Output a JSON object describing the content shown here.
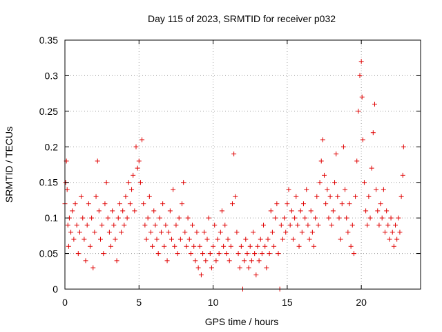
{
  "chart_data": {
    "type": "scatter",
    "title": "Day 115 of 2023, SRMTID for receiver p032",
    "xlabel": "GPS time / hours",
    "ylabel": "SRMTID / TECUs",
    "xlim": [
      0,
      24
    ],
    "ylim": [
      0,
      0.35
    ],
    "xticks": [
      0,
      5,
      10,
      15,
      20
    ],
    "xtick_labels": [
      "0",
      "5",
      "10",
      "15",
      "20"
    ],
    "yticks": [
      0,
      0.05,
      0.1,
      0.15,
      0.2,
      0.25,
      0.3,
      0.35
    ],
    "ytick_labels": [
      "0",
      "0.05",
      "0.1",
      "0.15",
      "0.2",
      "0.25",
      "0.3",
      "0.35"
    ],
    "grid": true,
    "marker": "+",
    "color": "#e00000",
    "series": [
      {
        "name": "SRMTID",
        "points": [
          [
            0.0,
            0.12
          ],
          [
            0.05,
            0.15
          ],
          [
            0.1,
            0.18
          ],
          [
            0.15,
            0.14
          ],
          [
            0.2,
            0.09
          ],
          [
            0.25,
            0.06
          ],
          [
            0.3,
            0.1
          ],
          [
            0.4,
            0.08
          ],
          [
            0.5,
            0.11
          ],
          [
            0.6,
            0.07
          ],
          [
            0.7,
            0.12
          ],
          [
            0.8,
            0.09
          ],
          [
            0.9,
            0.05
          ],
          [
            1.0,
            0.08
          ],
          [
            1.1,
            0.13
          ],
          [
            1.2,
            0.1
          ],
          [
            1.3,
            0.07
          ],
          [
            1.4,
            0.04
          ],
          [
            1.5,
            0.09
          ],
          [
            1.6,
            0.12
          ],
          [
            1.7,
            0.06
          ],
          [
            1.8,
            0.1
          ],
          [
            1.9,
            0.03
          ],
          [
            2.0,
            0.08
          ],
          [
            2.1,
            0.13
          ],
          [
            2.2,
            0.18
          ],
          [
            2.3,
            0.11
          ],
          [
            2.4,
            0.07
          ],
          [
            2.5,
            0.09
          ],
          [
            2.6,
            0.05
          ],
          [
            2.7,
            0.12
          ],
          [
            2.8,
            0.15
          ],
          [
            2.9,
            0.1
          ],
          [
            3.0,
            0.08
          ],
          [
            3.1,
            0.06
          ],
          [
            3.2,
            0.11
          ],
          [
            3.3,
            0.09
          ],
          [
            3.4,
            0.07
          ],
          [
            3.5,
            0.04
          ],
          [
            3.6,
            0.1
          ],
          [
            3.7,
            0.12
          ],
          [
            3.8,
            0.08
          ],
          [
            3.9,
            0.11
          ],
          [
            4.0,
            0.09
          ],
          [
            4.1,
            0.13
          ],
          [
            4.2,
            0.1
          ],
          [
            4.3,
            0.15
          ],
          [
            4.4,
            0.12
          ],
          [
            4.5,
            0.14
          ],
          [
            4.6,
            0.16
          ],
          [
            4.7,
            0.11
          ],
          [
            4.8,
            0.2
          ],
          [
            4.9,
            0.17
          ],
          [
            5.0,
            0.18
          ],
          [
            5.1,
            0.15
          ],
          [
            5.2,
            0.21
          ],
          [
            5.3,
            0.12
          ],
          [
            5.4,
            0.09
          ],
          [
            5.5,
            0.07
          ],
          [
            5.6,
            0.1
          ],
          [
            5.7,
            0.13
          ],
          [
            5.8,
            0.08
          ],
          [
            5.9,
            0.06
          ],
          [
            6.0,
            0.11
          ],
          [
            6.1,
            0.09
          ],
          [
            6.2,
            0.07
          ],
          [
            6.3,
            0.05
          ],
          [
            6.4,
            0.1
          ],
          [
            6.5,
            0.08
          ],
          [
            6.6,
            0.12
          ],
          [
            6.7,
            0.06
          ],
          [
            6.8,
            0.09
          ],
          [
            6.9,
            0.04
          ],
          [
            7.0,
            0.08
          ],
          [
            7.1,
            0.11
          ],
          [
            7.2,
            0.07
          ],
          [
            7.3,
            0.14
          ],
          [
            7.4,
            0.06
          ],
          [
            7.5,
            0.09
          ],
          [
            7.6,
            0.05
          ],
          [
            7.7,
            0.1
          ],
          [
            7.8,
            0.07
          ],
          [
            7.9,
            0.12
          ],
          [
            8.0,
            0.15
          ],
          [
            8.1,
            0.08
          ],
          [
            8.2,
            0.06
          ],
          [
            8.3,
            0.1
          ],
          [
            8.4,
            0.07
          ],
          [
            8.5,
            0.05
          ],
          [
            8.6,
            0.09
          ],
          [
            8.7,
            0.06
          ],
          [
            8.8,
            0.04
          ],
          [
            8.9,
            0.08
          ],
          [
            9.0,
            0.03
          ],
          [
            9.1,
            0.06
          ],
          [
            9.2,
            0.02
          ],
          [
            9.3,
            0.05
          ],
          [
            9.4,
            0.08
          ],
          [
            9.5,
            0.04
          ],
          [
            9.6,
            0.07
          ],
          [
            9.7,
            0.1
          ],
          [
            9.8,
            0.05
          ],
          [
            9.9,
            0.03
          ],
          [
            10.0,
            0.06
          ],
          [
            10.1,
            0.09
          ],
          [
            10.2,
            0.04
          ],
          [
            10.3,
            0.07
          ],
          [
            10.4,
            0.05
          ],
          [
            10.5,
            0.08
          ],
          [
            10.6,
            0.11
          ],
          [
            10.7,
            0.06
          ],
          [
            10.8,
            0.09
          ],
          [
            10.9,
            0.05
          ],
          [
            11.0,
            0.07
          ],
          [
            11.1,
            0.04
          ],
          [
            11.2,
            0.06
          ],
          [
            11.3,
            0.12
          ],
          [
            11.4,
            0.19
          ],
          [
            11.5,
            0.13
          ],
          [
            11.6,
            0.08
          ],
          [
            11.7,
            0.05
          ],
          [
            11.8,
            0.03
          ],
          [
            11.9,
            0.06
          ],
          [
            12.0,
            0.0
          ],
          [
            12.1,
            0.04
          ],
          [
            12.2,
            0.07
          ],
          [
            12.3,
            0.05
          ],
          [
            12.4,
            0.03
          ],
          [
            12.5,
            0.06
          ],
          [
            12.6,
            0.04
          ],
          [
            12.7,
            0.08
          ],
          [
            12.8,
            0.05
          ],
          [
            12.9,
            0.02
          ],
          [
            13.0,
            0.06
          ],
          [
            13.1,
            0.04
          ],
          [
            13.2,
            0.07
          ],
          [
            13.3,
            0.05
          ],
          [
            13.4,
            0.09
          ],
          [
            13.5,
            0.06
          ],
          [
            13.6,
            0.03
          ],
          [
            13.7,
            0.07
          ],
          [
            13.8,
            0.05
          ],
          [
            13.9,
            0.11
          ],
          [
            14.0,
            0.08
          ],
          [
            14.1,
            0.06
          ],
          [
            14.2,
            0.1
          ],
          [
            14.3,
            0.12
          ],
          [
            14.4,
            0.05
          ],
          [
            14.5,
            0.0
          ],
          [
            14.6,
            0.09
          ],
          [
            14.7,
            0.07
          ],
          [
            14.8,
            0.1
          ],
          [
            14.9,
            0.08
          ],
          [
            15.0,
            0.12
          ],
          [
            15.1,
            0.14
          ],
          [
            15.2,
            0.09
          ],
          [
            15.3,
            0.11
          ],
          [
            15.4,
            0.07
          ],
          [
            15.5,
            0.1
          ],
          [
            15.6,
            0.13
          ],
          [
            15.7,
            0.09
          ],
          [
            15.8,
            0.06
          ],
          [
            15.9,
            0.11
          ],
          [
            16.0,
            0.08
          ],
          [
            16.1,
            0.12
          ],
          [
            16.2,
            0.1
          ],
          [
            16.3,
            0.14
          ],
          [
            16.4,
            0.09
          ],
          [
            16.5,
            0.07
          ],
          [
            16.6,
            0.11
          ],
          [
            16.7,
            0.08
          ],
          [
            16.8,
            0.06
          ],
          [
            16.9,
            0.1
          ],
          [
            17.0,
            0.13
          ],
          [
            17.1,
            0.09
          ],
          [
            17.2,
            0.15
          ],
          [
            17.3,
            0.18
          ],
          [
            17.4,
            0.21
          ],
          [
            17.5,
            0.16
          ],
          [
            17.6,
            0.12
          ],
          [
            17.7,
            0.14
          ],
          [
            17.8,
            0.1
          ],
          [
            17.9,
            0.13
          ],
          [
            18.0,
            0.09
          ],
          [
            18.1,
            0.11
          ],
          [
            18.2,
            0.15
          ],
          [
            18.3,
            0.19
          ],
          [
            18.4,
            0.13
          ],
          [
            18.5,
            0.1
          ],
          [
            18.6,
            0.07
          ],
          [
            18.7,
            0.12
          ],
          [
            18.8,
            0.2
          ],
          [
            18.9,
            0.14
          ],
          [
            19.0,
            0.1
          ],
          [
            19.1,
            0.08
          ],
          [
            19.2,
            0.12
          ],
          [
            19.3,
            0.06
          ],
          [
            19.4,
            0.09
          ],
          [
            19.5,
            0.05
          ],
          [
            19.6,
            0.13
          ],
          [
            19.7,
            0.18
          ],
          [
            19.8,
            0.25
          ],
          [
            19.9,
            0.3
          ],
          [
            20.0,
            0.32
          ],
          [
            20.05,
            0.27
          ],
          [
            20.1,
            0.21
          ],
          [
            20.2,
            0.15
          ],
          [
            20.3,
            0.11
          ],
          [
            20.4,
            0.09
          ],
          [
            20.5,
            0.13
          ],
          [
            20.6,
            0.1
          ],
          [
            20.7,
            0.17
          ],
          [
            20.8,
            0.22
          ],
          [
            20.9,
            0.26
          ],
          [
            21.0,
            0.14
          ],
          [
            21.1,
            0.11
          ],
          [
            21.2,
            0.09
          ],
          [
            21.3,
            0.12
          ],
          [
            21.4,
            0.1
          ],
          [
            21.5,
            0.14
          ],
          [
            21.6,
            0.08
          ],
          [
            21.7,
            0.11
          ],
          [
            21.8,
            0.09
          ],
          [
            21.9,
            0.07
          ],
          [
            22.0,
            0.1
          ],
          [
            22.1,
            0.08
          ],
          [
            22.2,
            0.06
          ],
          [
            22.3,
            0.09
          ],
          [
            22.4,
            0.07
          ],
          [
            22.5,
            0.1
          ],
          [
            22.6,
            0.08
          ],
          [
            22.7,
            0.13
          ],
          [
            22.8,
            0.16
          ],
          [
            22.85,
            0.2
          ]
        ]
      }
    ]
  }
}
